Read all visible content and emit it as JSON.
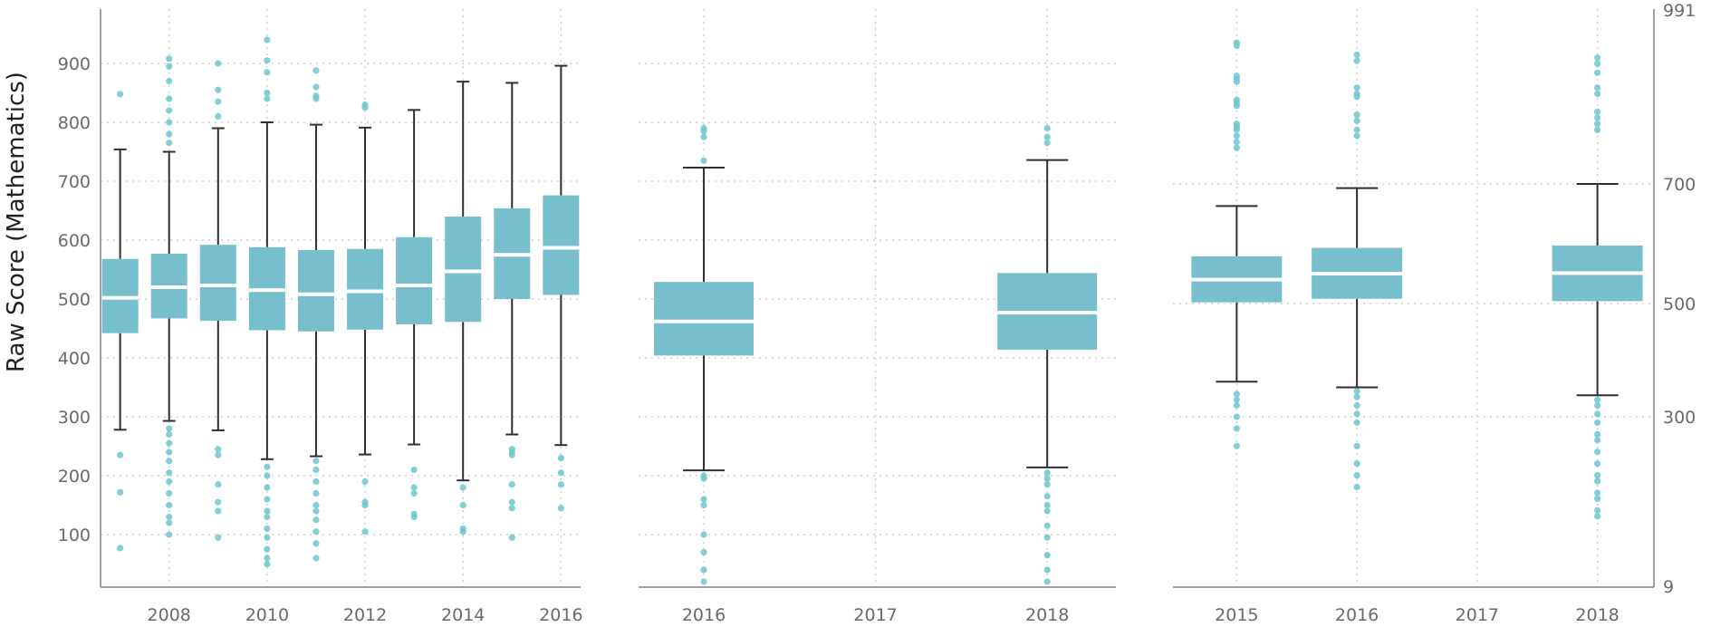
{
  "chart_data": [
    {
      "type": "box",
      "ylabel": "Raw Score (Mathematics)",
      "ylim": [
        10,
        1000
      ],
      "yticks": [
        100,
        200,
        300,
        400,
        500,
        600,
        700,
        800,
        900
      ],
      "xlim": [
        2006.6,
        2016.4
      ],
      "xticks": [
        2008,
        2010,
        2012,
        2014,
        2016
      ],
      "grid": true,
      "colors": {
        "box": "#78bfce",
        "outlier": "#6fc6cf",
        "whisker": "#2f2f2f"
      },
      "boxes": [
        {
          "x": 2007,
          "whislo": 278,
          "q1": 442,
          "med": 502,
          "q3": 568,
          "whishi": 754,
          "fliers": [
            848,
            235,
            172,
            77
          ]
        },
        {
          "x": 2008,
          "whislo": 293,
          "q1": 467,
          "med": 520,
          "q3": 577,
          "whishi": 750,
          "fliers": [
            908,
            895,
            870,
            840,
            820,
            800,
            780,
            765,
            280,
            270,
            255,
            240,
            225,
            205,
            190,
            170,
            150,
            130,
            120,
            100
          ]
        },
        {
          "x": 2009,
          "whislo": 277,
          "q1": 463,
          "med": 523,
          "q3": 592,
          "whishi": 790,
          "fliers": [
            900,
            855,
            835,
            810,
            245,
            235,
            185,
            155,
            140,
            95
          ]
        },
        {
          "x": 2010,
          "whislo": 228,
          "q1": 447,
          "med": 515,
          "q3": 588,
          "whishi": 800,
          "fliers": [
            940,
            905,
            885,
            850,
            840,
            215,
            200,
            180,
            160,
            140,
            130,
            110,
            95,
            75,
            60,
            50
          ]
        },
        {
          "x": 2011,
          "whislo": 233,
          "q1": 445,
          "med": 508,
          "q3": 583,
          "whishi": 796,
          "fliers": [
            888,
            860,
            845,
            840,
            225,
            210,
            190,
            170,
            150,
            140,
            125,
            105,
            85,
            60
          ]
        },
        {
          "x": 2012,
          "whislo": 236,
          "q1": 448,
          "med": 513,
          "q3": 585,
          "whishi": 791,
          "fliers": [
            830,
            825,
            190,
            155,
            150,
            105
          ]
        },
        {
          "x": 2013,
          "whislo": 253,
          "q1": 457,
          "med": 523,
          "q3": 605,
          "whishi": 821,
          "fliers": [
            210,
            180,
            170,
            135,
            130
          ]
        },
        {
          "x": 2014,
          "whislo": 192,
          "q1": 461,
          "med": 547,
          "q3": 640,
          "whishi": 869,
          "fliers": [
            180,
            150,
            110,
            105
          ]
        },
        {
          "x": 2015,
          "whislo": 270,
          "q1": 500,
          "med": 575,
          "q3": 654,
          "whishi": 867,
          "fliers": [
            245,
            240,
            235,
            185,
            155,
            145,
            95
          ]
        },
        {
          "x": 2016,
          "whislo": 252,
          "q1": 507,
          "med": 587,
          "q3": 676,
          "whishi": 896,
          "fliers": [
            230,
            205,
            185,
            145
          ]
        }
      ]
    },
    {
      "type": "box",
      "ylim": [
        10,
        1000
      ],
      "yticks": [
        100,
        200,
        300,
        400,
        500,
        600,
        700,
        800,
        900
      ],
      "xlim": [
        2015.62,
        2018.4
      ],
      "xticks": [
        2016,
        2017,
        2018
      ],
      "grid": true,
      "boxes": [
        {
          "x": 2016,
          "whislo": 209,
          "q1": 404,
          "med": 462,
          "q3": 529,
          "whishi": 723,
          "fliers": [
            790,
            785,
            775,
            735,
            200,
            195,
            160,
            150,
            100,
            70,
            40,
            20
          ]
        },
        {
          "x": 2018,
          "whislo": 214,
          "q1": 414,
          "med": 477,
          "q3": 544,
          "whishi": 736,
          "fliers": [
            790,
            775,
            765,
            205,
            195,
            185,
            165,
            150,
            140,
            115,
            95,
            65,
            40,
            20
          ]
        }
      ]
    },
    {
      "type": "box",
      "ylim": [
        9,
        991
      ],
      "yticks": [
        9,
        300,
        500,
        700,
        991
      ],
      "yscale": "nonlinear",
      "xlim": [
        2014.47,
        2018.47
      ],
      "xticks": [
        2015,
        2016,
        2017,
        2018
      ],
      "grid": true,
      "boxes": [
        {
          "x": 2015,
          "whislo": 362,
          "q1": 502,
          "med": 540,
          "q3": 579,
          "whishi": 663,
          "fliers": [
            935,
            930,
            880,
            875,
            870,
            840,
            835,
            830,
            800,
            795,
            790,
            780,
            770,
            760,
            340,
            330,
            320,
            300,
            280,
            250
          ]
        },
        {
          "x": 2016,
          "whislo": 352,
          "q1": 508,
          "med": 550,
          "q3": 593,
          "whishi": 693,
          "fliers": [
            915,
            905,
            860,
            850,
            845,
            815,
            805,
            790,
            780,
            345,
            335,
            320,
            305,
            290,
            250,
            220,
            200,
            180
          ]
        },
        {
          "x": 2018,
          "whislo": 338,
          "q1": 504,
          "med": 551,
          "q3": 597,
          "whishi": 700,
          "fliers": [
            910,
            900,
            885,
            860,
            850,
            820,
            810,
            800,
            790,
            330,
            320,
            305,
            290,
            270,
            260,
            240,
            220,
            200,
            190,
            170,
            160,
            140,
            130
          ]
        }
      ]
    }
  ]
}
